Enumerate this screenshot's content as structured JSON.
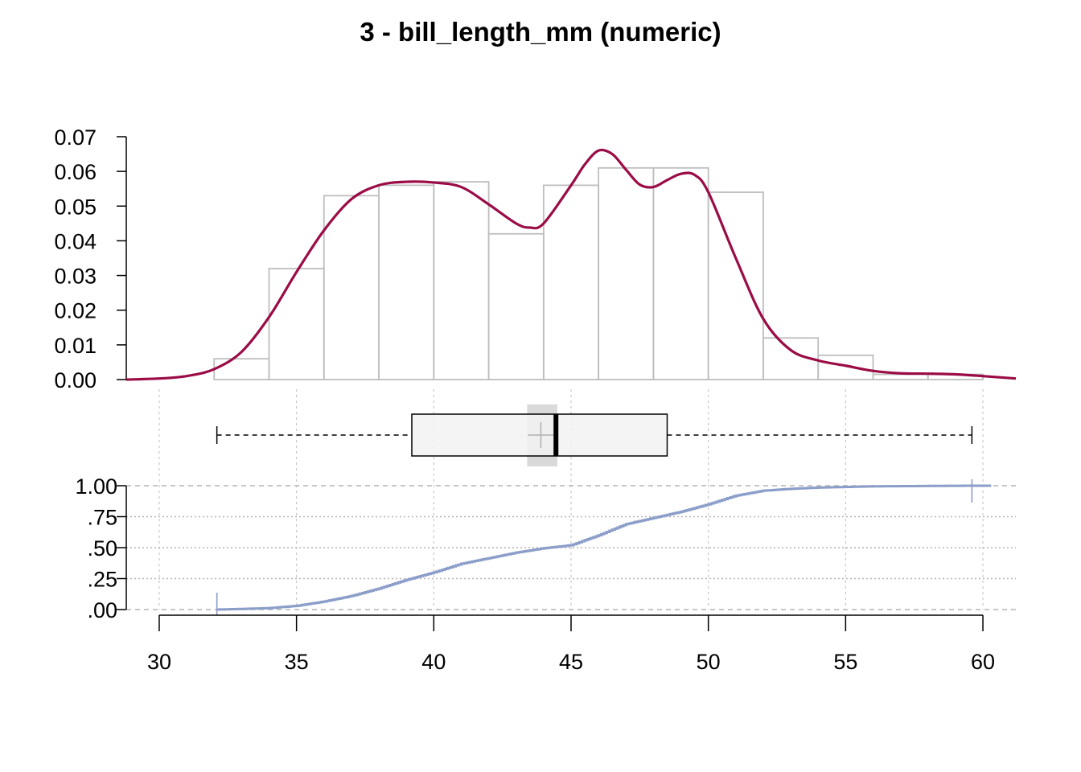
{
  "chart_data": {
    "title": "3 - bill_length_mm (numeric)",
    "x_axis": {
      "range": [
        28.8,
        61.2
      ],
      "ticks": [
        30,
        35,
        40,
        45,
        50,
        55,
        60
      ],
      "tick_labels": [
        "30",
        "35",
        "40",
        "45",
        "50",
        "55",
        "60"
      ],
      "grid": true
    },
    "histogram": {
      "type": "bar",
      "bin_edges": [
        32,
        34,
        36,
        38,
        40,
        42,
        44,
        46,
        48,
        50,
        52,
        54,
        56,
        58,
        60
      ],
      "density": [
        0.006,
        0.032,
        0.053,
        0.056,
        0.057,
        0.042,
        0.056,
        0.061,
        0.061,
        0.054,
        0.012,
        0.007,
        0.0015,
        0.0015
      ],
      "y_range": [
        0,
        0.07
      ],
      "y_ticks": [
        0,
        0.01,
        0.02,
        0.03,
        0.04,
        0.05,
        0.06,
        0.07
      ],
      "y_tick_labels": [
        "0.00",
        "0.01",
        "0.02",
        "0.03",
        "0.04",
        "0.05",
        "0.06",
        "0.07"
      ],
      "bar_color": "#bebebe"
    },
    "density_curve": {
      "type": "line",
      "color": "#9b0c47",
      "x": [
        28.8,
        30,
        31,
        32,
        33,
        34,
        35,
        36,
        37,
        38,
        39,
        40,
        41,
        42,
        43,
        43.5,
        44,
        45,
        45.5,
        46,
        46.5,
        47,
        47.5,
        48,
        48.5,
        49,
        49.5,
        50,
        51,
        52,
        53,
        54,
        55,
        56,
        57,
        58,
        59,
        60,
        61.2
      ],
      "y": [
        0.0,
        0.0003,
        0.001,
        0.003,
        0.008,
        0.018,
        0.031,
        0.043,
        0.052,
        0.056,
        0.057,
        0.0568,
        0.0555,
        0.0505,
        0.045,
        0.0438,
        0.045,
        0.056,
        0.062,
        0.066,
        0.065,
        0.0605,
        0.0562,
        0.0555,
        0.0575,
        0.0593,
        0.059,
        0.054,
        0.035,
        0.0175,
        0.0085,
        0.0055,
        0.004,
        0.0025,
        0.0018,
        0.0017,
        0.0015,
        0.001,
        0.0003
      ]
    },
    "boxplot": {
      "min": 32.1,
      "q1": 39.2,
      "median": 44.45,
      "q3": 48.5,
      "max": 59.6,
      "mean": 43.9,
      "mean_ci": [
        43.4,
        44.5
      ],
      "box_fill": "#f2f2f2",
      "ci_fill": "#d9d9d9"
    },
    "ecdf": {
      "type": "line",
      "color": "#8b9dc9",
      "x": [
        32.1,
        33,
        34,
        35,
        36,
        37,
        38,
        39,
        40,
        41,
        42,
        43,
        44,
        45,
        46,
        47,
        48,
        49,
        50,
        51,
        52,
        53,
        54,
        55,
        56,
        58,
        59.6,
        60.3
      ],
      "y": [
        0.0,
        0.005,
        0.012,
        0.03,
        0.065,
        0.11,
        0.17,
        0.24,
        0.3,
        0.37,
        0.415,
        0.46,
        0.495,
        0.52,
        0.6,
        0.69,
        0.74,
        0.79,
        0.85,
        0.92,
        0.96,
        0.975,
        0.985,
        0.99,
        0.995,
        0.998,
        1.0,
        1.0
      ],
      "y_range": [
        0,
        1
      ],
      "y_ticks": [
        0,
        0.25,
        0.5,
        0.75,
        1.0
      ],
      "y_tick_labels": [
        ".00",
        ".25",
        ".50",
        ".75",
        "1.00"
      ]
    }
  }
}
